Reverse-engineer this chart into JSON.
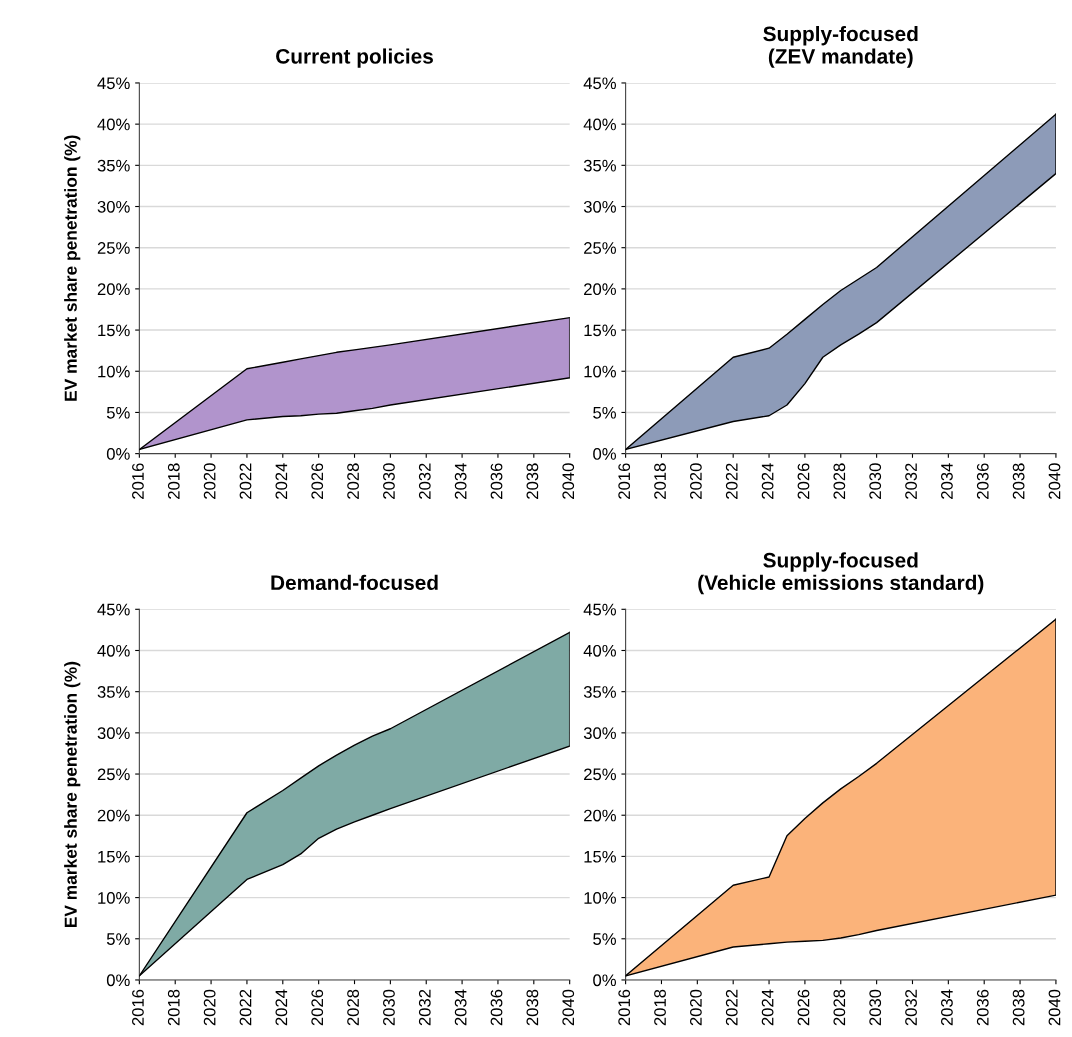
{
  "chart_data": [
    {
      "type": "area",
      "stacked": true,
      "title": "Current policies",
      "ylabel": "EV market share penetration (%)",
      "xlim": [
        2016,
        2040
      ],
      "xticks": [
        2016,
        2018,
        2020,
        2022,
        2024,
        2026,
        2028,
        2030,
        2032,
        2034,
        2036,
        2038,
        2040
      ],
      "ylim": [
        0,
        45
      ],
      "yticks": [
        {
          "value": 0,
          "label": "0%"
        },
        {
          "value": 5,
          "label": "5%"
        },
        {
          "value": 10,
          "label": "10%"
        },
        {
          "value": 15,
          "label": "15%"
        },
        {
          "value": 20,
          "label": "20%"
        },
        {
          "value": 25,
          "label": "25%"
        },
        {
          "value": 30,
          "label": "30%"
        },
        {
          "value": 35,
          "label": "35%"
        },
        {
          "value": 40,
          "label": "40%"
        },
        {
          "value": 45,
          "label": "45%"
        }
      ],
      "grid": "y",
      "series": [
        {
          "color": "#ffffff",
          "x": [
            2016,
            2022,
            2024,
            2025,
            2026,
            2027,
            2028,
            2029,
            2030,
            2040
          ],
          "values": [
            0.5,
            4.1,
            4.5,
            4.6,
            4.8,
            4.9,
            5.2,
            5.5,
            5.9,
            9.2
          ]
        },
        {
          "color": "#b194cc",
          "x": [
            2016,
            2022,
            2024,
            2025,
            2026,
            2027,
            2028,
            2029,
            2030,
            2040
          ],
          "values": [
            0,
            6.2,
            6.6,
            6.9,
            7.1,
            7.4,
            7.4,
            7.4,
            7.3,
            7.3
          ]
        }
      ]
    },
    {
      "type": "area",
      "stacked": true,
      "title": "Supply-focused\n(ZEV mandate)",
      "xlim": [
        2016,
        2040
      ],
      "xticks": [
        2016,
        2018,
        2020,
        2022,
        2024,
        2026,
        2028,
        2030,
        2032,
        2034,
        2036,
        2038,
        2040
      ],
      "ylim": [
        0,
        45
      ],
      "yticks": [
        {
          "value": 0,
          "label": "0%"
        },
        {
          "value": 5,
          "label": "5%"
        },
        {
          "value": 10,
          "label": "10%"
        },
        {
          "value": 15,
          "label": "15%"
        },
        {
          "value": 20,
          "label": "20%"
        },
        {
          "value": 25,
          "label": "25%"
        },
        {
          "value": 30,
          "label": "30%"
        },
        {
          "value": 35,
          "label": "35%"
        },
        {
          "value": 40,
          "label": "40%"
        },
        {
          "value": 45,
          "label": "45%"
        }
      ],
      "grid": "y",
      "series": [
        {
          "color": "#ffffff",
          "x": [
            2016,
            2022,
            2024,
            2025,
            2026,
            2027,
            2028,
            2029,
            2030,
            2040
          ],
          "values": [
            0.5,
            3.9,
            4.6,
            5.9,
            8.5,
            11.7,
            13.2,
            14.5,
            15.9,
            34.0
          ]
        },
        {
          "color": "#8d9bb8",
          "x": [
            2016,
            2022,
            2024,
            2025,
            2026,
            2027,
            2028,
            2029,
            2030,
            2040
          ],
          "values": [
            0,
            7.8,
            8.2,
            8.6,
            7.8,
            6.4,
            6.6,
            6.7,
            6.7,
            7.2
          ]
        }
      ]
    },
    {
      "type": "area",
      "stacked": true,
      "title": "Demand-focused",
      "ylabel": "EV market share penetration (%)",
      "xlim": [
        2016,
        2040
      ],
      "xticks": [
        2016,
        2018,
        2020,
        2022,
        2024,
        2026,
        2028,
        2030,
        2032,
        2034,
        2036,
        2038,
        2040
      ],
      "ylim": [
        0,
        45
      ],
      "yticks": [
        {
          "value": 0,
          "label": "0%"
        },
        {
          "value": 5,
          "label": "5%"
        },
        {
          "value": 10,
          "label": "10%"
        },
        {
          "value": 15,
          "label": "15%"
        },
        {
          "value": 20,
          "label": "20%"
        },
        {
          "value": 25,
          "label": "25%"
        },
        {
          "value": 30,
          "label": "30%"
        },
        {
          "value": 35,
          "label": "35%"
        },
        {
          "value": 40,
          "label": "40%"
        },
        {
          "value": 45,
          "label": "45%"
        }
      ],
      "grid": "y",
      "series": [
        {
          "color": "#ffffff",
          "x": [
            2016,
            2022,
            2024,
            2025,
            2026,
            2027,
            2028,
            2029,
            2030,
            2040
          ],
          "values": [
            0.5,
            12.2,
            14.0,
            15.3,
            17.2,
            18.3,
            19.2,
            20.0,
            20.8,
            28.4
          ]
        },
        {
          "color": "#7faaa5",
          "x": [
            2016,
            2022,
            2024,
            2025,
            2026,
            2027,
            2028,
            2029,
            2030,
            2040
          ],
          "values": [
            0,
            8.1,
            9.0,
            9.2,
            8.8,
            9.0,
            9.3,
            9.6,
            9.7,
            13.8
          ]
        }
      ]
    },
    {
      "type": "area",
      "stacked": true,
      "title": "Supply-focused\n(Vehicle emissions standard)",
      "xlim": [
        2016,
        2040
      ],
      "xticks": [
        2016,
        2018,
        2020,
        2022,
        2024,
        2026,
        2028,
        2030,
        2032,
        2034,
        2036,
        2038,
        2040
      ],
      "ylim": [
        0,
        45
      ],
      "yticks": [
        {
          "value": 0,
          "label": "0%"
        },
        {
          "value": 5,
          "label": "5%"
        },
        {
          "value": 10,
          "label": "10%"
        },
        {
          "value": 15,
          "label": "15%"
        },
        {
          "value": 20,
          "label": "20%"
        },
        {
          "value": 25,
          "label": "25%"
        },
        {
          "value": 30,
          "label": "30%"
        },
        {
          "value": 35,
          "label": "35%"
        },
        {
          "value": 40,
          "label": "40%"
        },
        {
          "value": 45,
          "label": "45%"
        }
      ],
      "grid": "y",
      "series": [
        {
          "color": "#ffffff",
          "x": [
            2016,
            2022,
            2024,
            2025,
            2026,
            2027,
            2028,
            2029,
            2030,
            2040
          ],
          "values": [
            0.5,
            4.0,
            4.4,
            4.6,
            4.7,
            4.8,
            5.1,
            5.5,
            6.0,
            10.3
          ]
        },
        {
          "color": "#fbb37a",
          "x": [
            2016,
            2022,
            2024,
            2025,
            2026,
            2027,
            2028,
            2029,
            2030,
            2040
          ],
          "values": [
            0,
            7.5,
            8.1,
            12.9,
            14.9,
            16.7,
            18.1,
            19.2,
            20.3,
            33.5
          ]
        }
      ]
    }
  ]
}
